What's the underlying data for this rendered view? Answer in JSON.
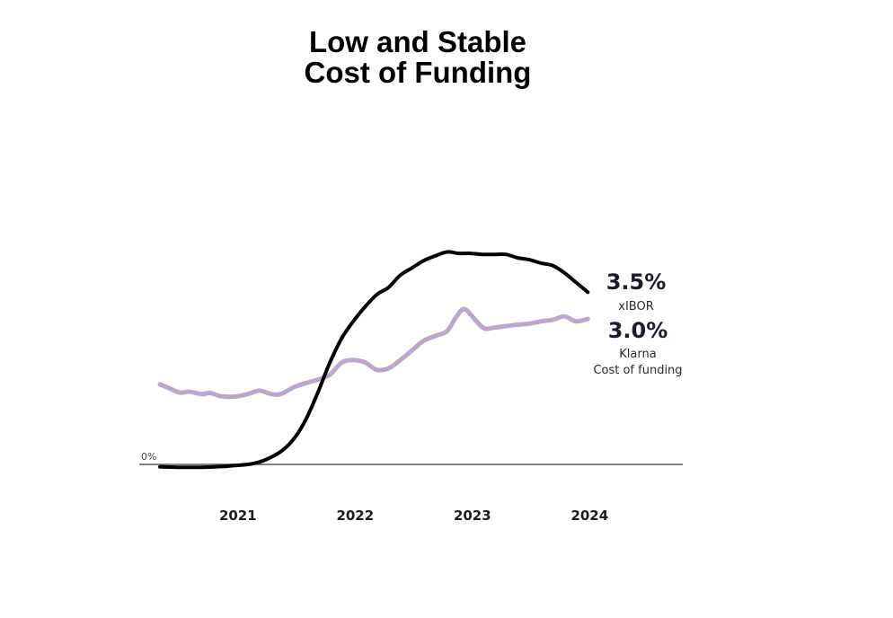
{
  "title": {
    "line1": "Low and Stable",
    "line2": "Cost of Funding"
  },
  "chart_data": {
    "type": "line",
    "title": "Low and Stable Cost of Funding",
    "xlabel": "",
    "ylabel": "",
    "xlim": [
      2020.35,
      2024.8
    ],
    "ylim": [
      0,
      4.5
    ],
    "grid": false,
    "zero_line_label": "0%",
    "x_ticks": [
      {
        "value": 2021,
        "label": "2021"
      },
      {
        "value": 2022,
        "label": "2022"
      },
      {
        "value": 2023,
        "label": "2023"
      },
      {
        "value": 2024,
        "label": "2024"
      }
    ],
    "series": [
      {
        "name": "xIBOR",
        "color": "#000000",
        "end_label_value": "3.5%",
        "end_label_name": "xIBOR",
        "x": [
          2020.35,
          2020.5,
          2020.7,
          2020.9,
          2021.0,
          2021.1,
          2021.2,
          2021.3,
          2021.4,
          2021.5,
          2021.6,
          2021.7,
          2021.8,
          2021.9,
          2022.0,
          2022.1,
          2022.2,
          2022.3,
          2022.4,
          2022.5,
          2022.6,
          2022.7,
          2022.8,
          2022.9,
          2023.0,
          2023.1,
          2023.2,
          2023.3,
          2023.4,
          2023.5,
          2023.6,
          2023.7,
          2023.8,
          2023.9,
          2024.0
        ],
        "y": [
          -0.05,
          -0.06,
          -0.06,
          -0.04,
          -0.02,
          0.0,
          0.05,
          0.15,
          0.3,
          0.55,
          0.95,
          1.5,
          2.1,
          2.6,
          2.95,
          3.25,
          3.5,
          3.65,
          3.9,
          4.05,
          4.2,
          4.3,
          4.38,
          4.35,
          4.35,
          4.33,
          4.33,
          4.33,
          4.26,
          4.22,
          4.15,
          4.1,
          3.95,
          3.75,
          3.55
        ]
      },
      {
        "name": "Klarna Cost of funding",
        "color": "#b9a7cc",
        "end_label_value": "3.0%",
        "end_label_name_line1": "Klarna",
        "end_label_name_line2": "Cost of funding",
        "x": [
          2020.35,
          2020.42,
          2020.52,
          2020.6,
          2020.7,
          2020.78,
          2020.88,
          2021.0,
          2021.1,
          2021.2,
          2021.3,
          2021.38,
          2021.5,
          2021.6,
          2021.7,
          2021.8,
          2021.9,
          2022.0,
          2022.1,
          2022.2,
          2022.3,
          2022.4,
          2022.5,
          2022.6,
          2022.7,
          2022.8,
          2022.88,
          2022.95,
          2023.05,
          2023.12,
          2023.2,
          2023.3,
          2023.4,
          2023.5,
          2023.6,
          2023.7,
          2023.8,
          2023.9,
          2024.0
        ],
        "y": [
          1.65,
          1.58,
          1.48,
          1.5,
          1.45,
          1.47,
          1.4,
          1.4,
          1.45,
          1.52,
          1.45,
          1.45,
          1.6,
          1.68,
          1.75,
          1.85,
          2.1,
          2.15,
          2.1,
          1.95,
          1.98,
          2.15,
          2.35,
          2.55,
          2.65,
          2.75,
          3.05,
          3.2,
          2.95,
          2.8,
          2.82,
          2.85,
          2.88,
          2.9,
          2.95,
          2.98,
          3.05,
          2.95,
          3.0
        ]
      }
    ]
  }
}
